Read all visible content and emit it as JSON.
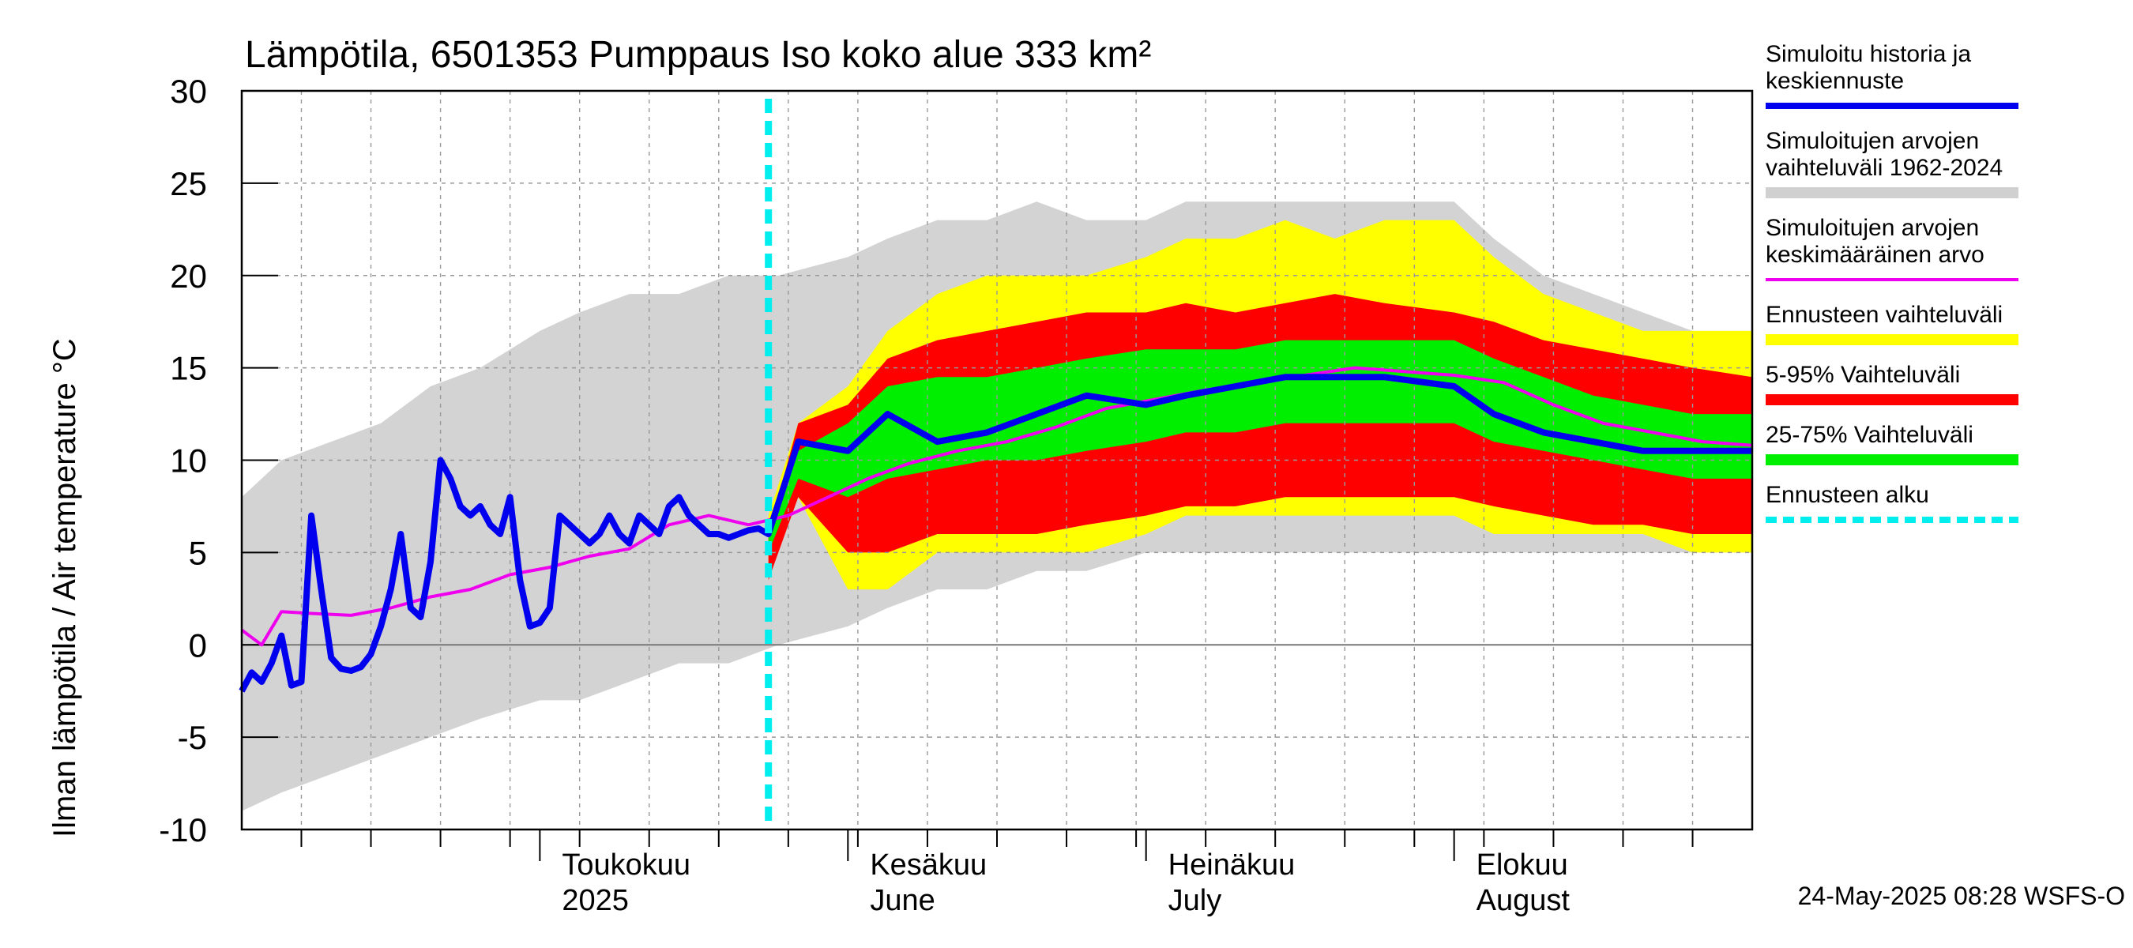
{
  "chart_data": {
    "type": "area",
    "title": "Lämpötila, 6501353 Pumppaus Iso koko alue 333 km²",
    "ylabel": "Ilman lämpötila / Air temperature   °C",
    "ylim": [
      -10,
      30
    ],
    "yticks": [
      "-10",
      "-5",
      "0",
      "5",
      "10",
      "15",
      "20",
      "25",
      "30"
    ],
    "x_start": "2025-04-01",
    "x_end": "2025-08-31",
    "forecast_start": "2025-05-24",
    "months": [
      {
        "date": "2025-05-01",
        "line1": "Toukokuu",
        "line2": "2025"
      },
      {
        "date": "2025-06-01",
        "line1": "Kesäkuu",
        "line2": "June"
      },
      {
        "date": "2025-07-01",
        "line1": "Heinäkuu",
        "line2": "July"
      },
      {
        "date": "2025-08-01",
        "line1": "Elokuu",
        "line2": "August"
      }
    ],
    "timestamp": "24-May-2025 08:28 WSFS-O",
    "legend": [
      {
        "label1": "Simuloitu historia ja",
        "label2": "keskiennuste",
        "color": "#0000ee",
        "kind": "line"
      },
      {
        "label1": "Simuloitujen arvojen",
        "label2": "vaihteluväli 1962-2024",
        "color": "#d0d0d0",
        "kind": "band"
      },
      {
        "label1": "Simuloitujen arvojen",
        "label2": "keskimääräinen arvo",
        "color": "#ee00ee",
        "kind": "thin"
      },
      {
        "label1": "Ennusteen vaihteluväli",
        "label2": "",
        "color": "#ffff00",
        "kind": "band"
      },
      {
        "label1": "5-95% Vaihteluväli",
        "label2": "",
        "color": "#ff0000",
        "kind": "band"
      },
      {
        "label1": "25-75% Vaihteluväli",
        "label2": "",
        "color": "#00ee00",
        "kind": "band"
      },
      {
        "label1": "Ennusteen alku",
        "label2": "",
        "color": "#00eeee",
        "kind": "dash"
      }
    ],
    "hist_range": {
      "dates": [
        "2025-04-01",
        "2025-04-05",
        "2025-04-10",
        "2025-04-15",
        "2025-04-20",
        "2025-04-25",
        "2025-05-01",
        "2025-05-05",
        "2025-05-10",
        "2025-05-15",
        "2025-05-20",
        "2025-05-25",
        "2025-06-01",
        "2025-06-05",
        "2025-06-10",
        "2025-06-15",
        "2025-06-20",
        "2025-06-25",
        "2025-07-01",
        "2025-07-05",
        "2025-07-10",
        "2025-07-15",
        "2025-07-20",
        "2025-07-25",
        "2025-08-01",
        "2025-08-05",
        "2025-08-10",
        "2025-08-15",
        "2025-08-20",
        "2025-08-25",
        "2025-08-31"
      ],
      "low": [
        -9,
        -8,
        -7,
        -6,
        -5,
        -4,
        -3,
        -3,
        -2,
        -1,
        -1,
        0,
        1,
        2,
        3,
        3,
        4,
        4,
        5,
        5,
        5,
        5,
        5,
        5,
        5,
        5,
        5,
        5,
        5,
        5,
        5
      ],
      "high": [
        8,
        10,
        11,
        12,
        14,
        15,
        17,
        18,
        19,
        19,
        20,
        20,
        21,
        22,
        23,
        23,
        24,
        23,
        23,
        24,
        24,
        24,
        24,
        24,
        24,
        22,
        20,
        19,
        18,
        17,
        17
      ]
    },
    "forecast_outer": {
      "dates": [
        "2025-05-24",
        "2025-05-27",
        "2025-06-01",
        "2025-06-05",
        "2025-06-10",
        "2025-06-15",
        "2025-06-20",
        "2025-06-25",
        "2025-07-01",
        "2025-07-05",
        "2025-07-10",
        "2025-07-15",
        "2025-07-20",
        "2025-07-25",
        "2025-08-01",
        "2025-08-05",
        "2025-08-10",
        "2025-08-15",
        "2025-08-20",
        "2025-08-25",
        "2025-08-31"
      ],
      "low": [
        4,
        8,
        3,
        3,
        5,
        5,
        5,
        5,
        6,
        7,
        7,
        7,
        7,
        7,
        7,
        6,
        6,
        6,
        6,
        5,
        5
      ],
      "high": [
        7,
        12,
        14,
        17,
        19,
        20,
        20,
        20,
        21,
        22,
        22,
        23,
        22,
        23,
        23,
        21,
        19,
        18,
        17,
        17,
        17
      ]
    },
    "forecast_5_95": {
      "dates": [
        "2025-05-24",
        "2025-05-27",
        "2025-06-01",
        "2025-06-05",
        "2025-06-10",
        "2025-06-15",
        "2025-06-20",
        "2025-06-25",
        "2025-07-01",
        "2025-07-05",
        "2025-07-10",
        "2025-07-15",
        "2025-07-20",
        "2025-07-25",
        "2025-08-01",
        "2025-08-05",
        "2025-08-10",
        "2025-08-15",
        "2025-08-20",
        "2025-08-25",
        "2025-08-31"
      ],
      "low": [
        3.5,
        8,
        5,
        5,
        6,
        6,
        6,
        6.5,
        7,
        7.5,
        7.5,
        8,
        8,
        8,
        8,
        7.5,
        7,
        6.5,
        6.5,
        6,
        6
      ],
      "high": [
        6,
        12,
        13,
        15.5,
        16.5,
        17,
        17.5,
        18,
        18,
        18.5,
        18,
        18.5,
        19,
        18.5,
        18,
        17.5,
        16.5,
        16,
        15.5,
        15,
        14.5
      ]
    },
    "forecast_25_75": {
      "dates": [
        "2025-05-24",
        "2025-05-27",
        "2025-06-01",
        "2025-06-05",
        "2025-06-10",
        "2025-06-15",
        "2025-06-20",
        "2025-06-25",
        "2025-07-01",
        "2025-07-05",
        "2025-07-10",
        "2025-07-15",
        "2025-07-20",
        "2025-07-25",
        "2025-08-01",
        "2025-08-05",
        "2025-08-10",
        "2025-08-15",
        "2025-08-20",
        "2025-08-25",
        "2025-08-31"
      ],
      "low": [
        5,
        9,
        8,
        9,
        9.5,
        10,
        10,
        10.5,
        11,
        11.5,
        11.5,
        12,
        12,
        12,
        12,
        11,
        10.5,
        10,
        9.5,
        9,
        9
      ],
      "high": [
        6,
        10.5,
        12,
        14,
        14.5,
        14.5,
        15,
        15.5,
        16,
        16,
        16,
        16.5,
        16.5,
        16.5,
        16.5,
        15.5,
        14.5,
        13.5,
        13,
        12.5,
        12.5
      ]
    },
    "series": [
      {
        "name": "Simuloitu historia ja keskiennuste",
        "color": "#0000ee",
        "dates": [
          "2025-04-01",
          "2025-04-02",
          "2025-04-03",
          "2025-04-04",
          "2025-04-05",
          "2025-04-06",
          "2025-04-07",
          "2025-04-08",
          "2025-04-09",
          "2025-04-10",
          "2025-04-11",
          "2025-04-12",
          "2025-04-13",
          "2025-04-14",
          "2025-04-15",
          "2025-04-16",
          "2025-04-17",
          "2025-04-18",
          "2025-04-19",
          "2025-04-20",
          "2025-04-21",
          "2025-04-22",
          "2025-04-23",
          "2025-04-24",
          "2025-04-25",
          "2025-04-26",
          "2025-04-27",
          "2025-04-28",
          "2025-04-29",
          "2025-04-30",
          "2025-05-01",
          "2025-05-02",
          "2025-05-03",
          "2025-05-04",
          "2025-05-05",
          "2025-05-06",
          "2025-05-07",
          "2025-05-08",
          "2025-05-09",
          "2025-05-10",
          "2025-05-11",
          "2025-05-12",
          "2025-05-13",
          "2025-05-14",
          "2025-05-15",
          "2025-05-16",
          "2025-05-17",
          "2025-05-18",
          "2025-05-19",
          "2025-05-20",
          "2025-05-21",
          "2025-05-22",
          "2025-05-23",
          "2025-05-24",
          "2025-05-27",
          "2025-06-01",
          "2025-06-05",
          "2025-06-10",
          "2025-06-15",
          "2025-06-20",
          "2025-06-25",
          "2025-07-01",
          "2025-07-05",
          "2025-07-10",
          "2025-07-15",
          "2025-07-20",
          "2025-07-25",
          "2025-08-01",
          "2025-08-05",
          "2025-08-10",
          "2025-08-15",
          "2025-08-20",
          "2025-08-25",
          "2025-08-31"
        ],
        "values": [
          -2.5,
          -1.5,
          -2.0,
          -1.0,
          0.5,
          -2.2,
          -2.0,
          7.0,
          3.0,
          -0.7,
          -1.3,
          -1.4,
          -1.2,
          -0.5,
          1.0,
          3.0,
          6.0,
          2.0,
          1.5,
          4.5,
          10.0,
          9.0,
          7.5,
          7.0,
          7.5,
          6.5,
          6.0,
          8.0,
          3.5,
          1.0,
          1.2,
          2.0,
          7.0,
          6.5,
          6.0,
          5.5,
          6.0,
          7.0,
          6.0,
          5.5,
          7.0,
          6.5,
          6.0,
          7.5,
          8.0,
          7.0,
          6.5,
          6.0,
          6.0,
          5.8,
          6.0,
          6.2,
          6.3,
          6.0,
          11.0,
          10.5,
          12.5,
          11.0,
          11.5,
          12.5,
          13.5,
          13.0,
          13.5,
          14.0,
          14.5,
          14.5,
          14.5,
          14.0,
          12.5,
          11.5,
          11.0,
          10.5,
          10.5,
          10.5
        ]
      },
      {
        "name": "Simuloitujen arvojen keskimääräinen arvo",
        "color": "#ee00ee",
        "dates": [
          "2025-04-01",
          "2025-04-03",
          "2025-04-05",
          "2025-04-08",
          "2025-04-12",
          "2025-04-16",
          "2025-04-20",
          "2025-04-24",
          "2025-04-28",
          "2025-05-02",
          "2025-05-06",
          "2025-05-10",
          "2025-05-14",
          "2025-05-18",
          "2025-05-22",
          "2025-05-26",
          "2025-05-30",
          "2025-06-03",
          "2025-06-07",
          "2025-06-12",
          "2025-06-17",
          "2025-06-22",
          "2025-06-27",
          "2025-07-02",
          "2025-07-07",
          "2025-07-12",
          "2025-07-17",
          "2025-07-22",
          "2025-07-27",
          "2025-08-01",
          "2025-08-06",
          "2025-08-11",
          "2025-08-16",
          "2025-08-21",
          "2025-08-26",
          "2025-08-31"
        ],
        "values": [
          0.8,
          0.0,
          1.8,
          1.7,
          1.6,
          2.0,
          2.6,
          3.0,
          3.8,
          4.2,
          4.8,
          5.2,
          6.5,
          7.0,
          6.5,
          7.0,
          8.0,
          9.0,
          9.8,
          10.5,
          11.0,
          11.8,
          12.8,
          13.3,
          13.8,
          14.2,
          14.6,
          15.0,
          14.8,
          14.6,
          14.2,
          13.0,
          12.0,
          11.5,
          11.0,
          10.8
        ]
      }
    ]
  }
}
